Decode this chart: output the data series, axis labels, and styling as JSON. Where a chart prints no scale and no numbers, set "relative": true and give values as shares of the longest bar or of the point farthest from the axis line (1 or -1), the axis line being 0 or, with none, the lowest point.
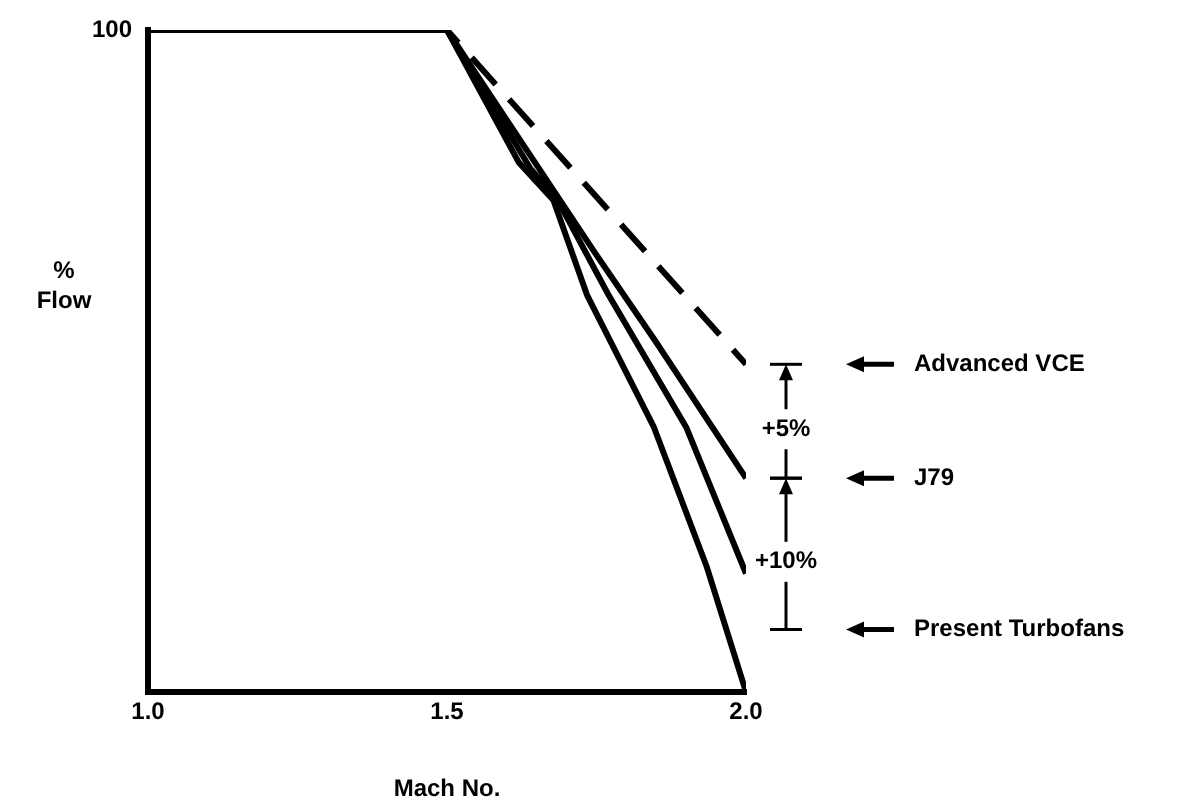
{
  "chart_data": {
    "type": "line",
    "relative": true,
    "xlabel": "Mach No.",
    "ylabel": "% Flow",
    "xlim": [
      1.0,
      2.0
    ],
    "xticks": [
      {
        "value": 1.0,
        "label": "1.0"
      },
      {
        "value": 1.5,
        "label": "1.5"
      },
      {
        "value": 2.0,
        "label": "2.0"
      }
    ],
    "grid": false,
    "legend": false,
    "marker": "none",
    "series": [
      {
        "color": "#000000",
        "line_style": "dashed",
        "x": [
          1.0,
          1.5,
          1.733,
          2.0
        ],
        "values": [
          1,
          1,
          0.765,
          0.495
        ]
      },
      {
        "color": "#000000",
        "line_style": "solid",
        "x": [
          1.0,
          1.5,
          1.75,
          1.847,
          2.0
        ],
        "values": [
          1,
          1,
          0.66,
          0.532,
          0.323
        ]
      },
      {
        "color": "#000000",
        "line_style": "solid",
        "x": [
          1.0,
          1.5,
          1.64,
          1.685,
          1.77,
          1.9,
          2.0
        ],
        "values": [
          1,
          1,
          0.79,
          0.743,
          0.6,
          0.4,
          0.179
        ]
      },
      {
        "color": "#000000",
        "line_style": "solid",
        "x": [
          1.0,
          1.5,
          1.62,
          1.678,
          1.734,
          1.846,
          1.934,
          2.0
        ],
        "values": [
          1,
          1,
          0.8,
          0.743,
          0.6,
          0.4,
          0.19,
          0
        ]
      }
    ],
    "annotations": [
      "100",
      "+5%",
      "+10%",
      "Advanced VCE",
      "J79",
      "Present Turbofans"
    ]
  }
}
